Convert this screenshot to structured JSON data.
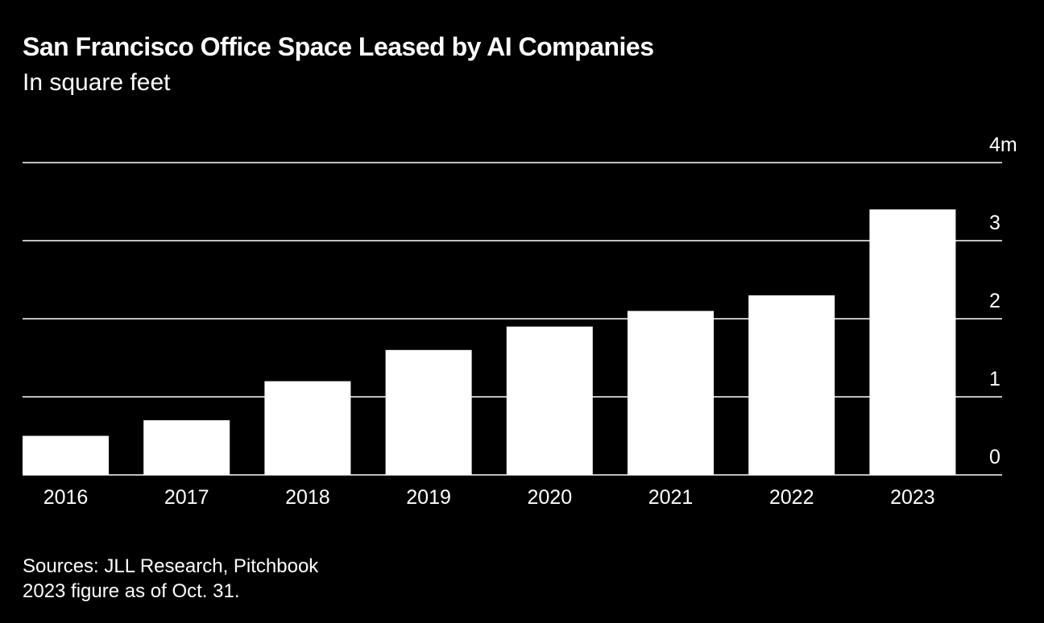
{
  "header": {
    "title": "San Francisco Office Space Leased by AI Companies",
    "subtitle": "In square feet"
  },
  "chart_data": {
    "type": "bar",
    "title": "San Francisco Office Space Leased by AI Companies",
    "subtitle": "In square feet",
    "categories": [
      "2016",
      "2017",
      "2018",
      "2019",
      "2020",
      "2021",
      "2022",
      "2023"
    ],
    "values": [
      0.5,
      0.7,
      1.2,
      1.6,
      1.9,
      2.1,
      2.3,
      3.4
    ],
    "unit": "million square feet",
    "xlabel": "",
    "ylabel": "",
    "ylim": [
      0,
      4
    ],
    "yticks": [
      {
        "value": 0,
        "label": "0"
      },
      {
        "value": 1,
        "label": "1"
      },
      {
        "value": 2,
        "label": "2"
      },
      {
        "value": 3,
        "label": "3"
      },
      {
        "value": 4,
        "label": "4m"
      }
    ],
    "grid": true,
    "y_axis_side": "right"
  },
  "footer": {
    "sources": "Sources: JLL Research, Pitchbook",
    "note": "2023 figure as of Oct. 31."
  },
  "colors": {
    "background": "#000000",
    "bar": "#ffffff",
    "gridline": "#ffffff",
    "text": "#ffffff"
  }
}
